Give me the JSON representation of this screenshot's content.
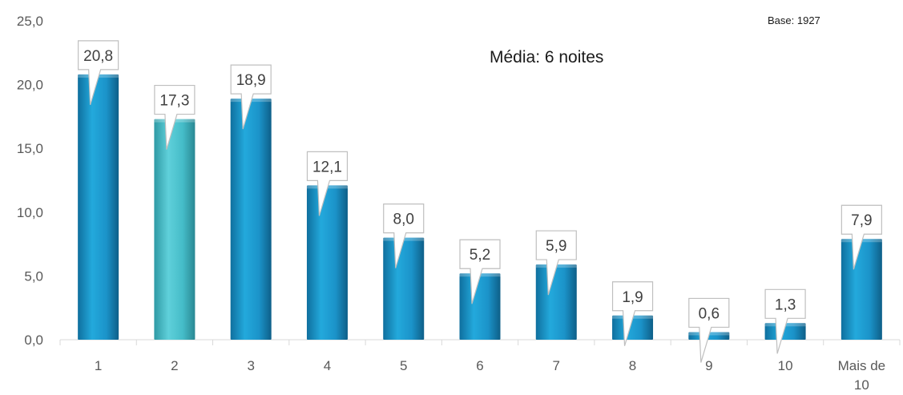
{
  "chart_data": {
    "type": "bar",
    "categories": [
      "1",
      "2",
      "3",
      "4",
      "5",
      "6",
      "7",
      "8",
      "9",
      "10",
      "Mais de 10"
    ],
    "values": [
      20.8,
      17.3,
      18.9,
      12.1,
      8.0,
      5.2,
      5.9,
      1.9,
      0.6,
      1.3,
      7.9
    ],
    "data_labels": [
      "20,8",
      "17,3",
      "18,9",
      "12,1",
      "8,0",
      "5,2",
      "5,9",
      "1,9",
      "0,6",
      "1,3",
      "7,9"
    ],
    "yticks": [
      "0,0",
      "5,0",
      "10,0",
      "15,0",
      "20,0",
      "25,0"
    ],
    "ylim": [
      0,
      25
    ],
    "grid": false,
    "legend": "none",
    "bar_color": "#1a9bd0",
    "highlight_color": "#4cc3cf",
    "highlight_index": 1,
    "annotations": {
      "media": "Média: 6 noites",
      "base": "Base: 1927"
    }
  }
}
